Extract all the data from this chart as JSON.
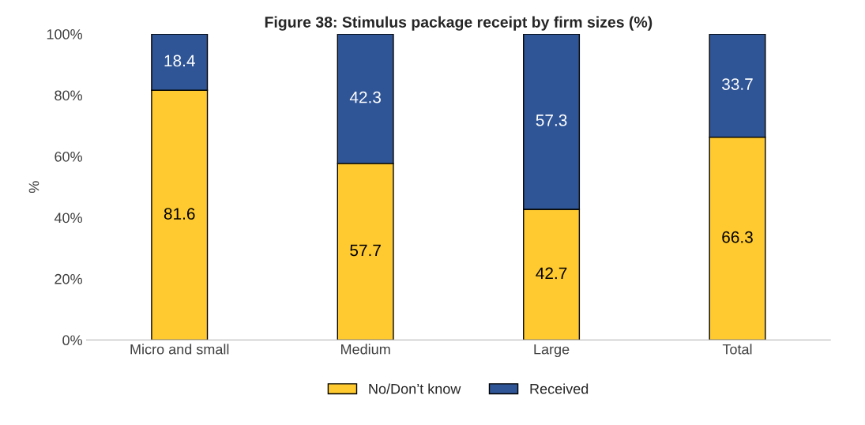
{
  "chart_data": {
    "type": "bar",
    "title": "Figure 38: Stimulus package receipt by firm sizes (%)",
    "ylabel": "%",
    "categories": [
      "Micro and small",
      "Medium",
      "Large",
      "Total"
    ],
    "series": [
      {
        "name": "No/Don’t know",
        "color": "#ffca2f",
        "values": [
          81.6,
          57.7,
          42.7,
          66.3
        ]
      },
      {
        "name": "Received",
        "color": "#2f5597",
        "values": [
          18.4,
          42.3,
          57.3,
          33.7
        ]
      }
    ],
    "stacked": true,
    "data_labels": true,
    "legend": "bottom",
    "grid": false,
    "ylim": [
      0,
      100
    ],
    "yticks": [
      {
        "value": 0,
        "label": "0%"
      },
      {
        "value": 20,
        "label": "20%"
      },
      {
        "value": 40,
        "label": "40%"
      },
      {
        "value": 60,
        "label": "60%"
      },
      {
        "value": 80,
        "label": "80%"
      },
      {
        "value": 100,
        "label": "100%"
      }
    ]
  }
}
